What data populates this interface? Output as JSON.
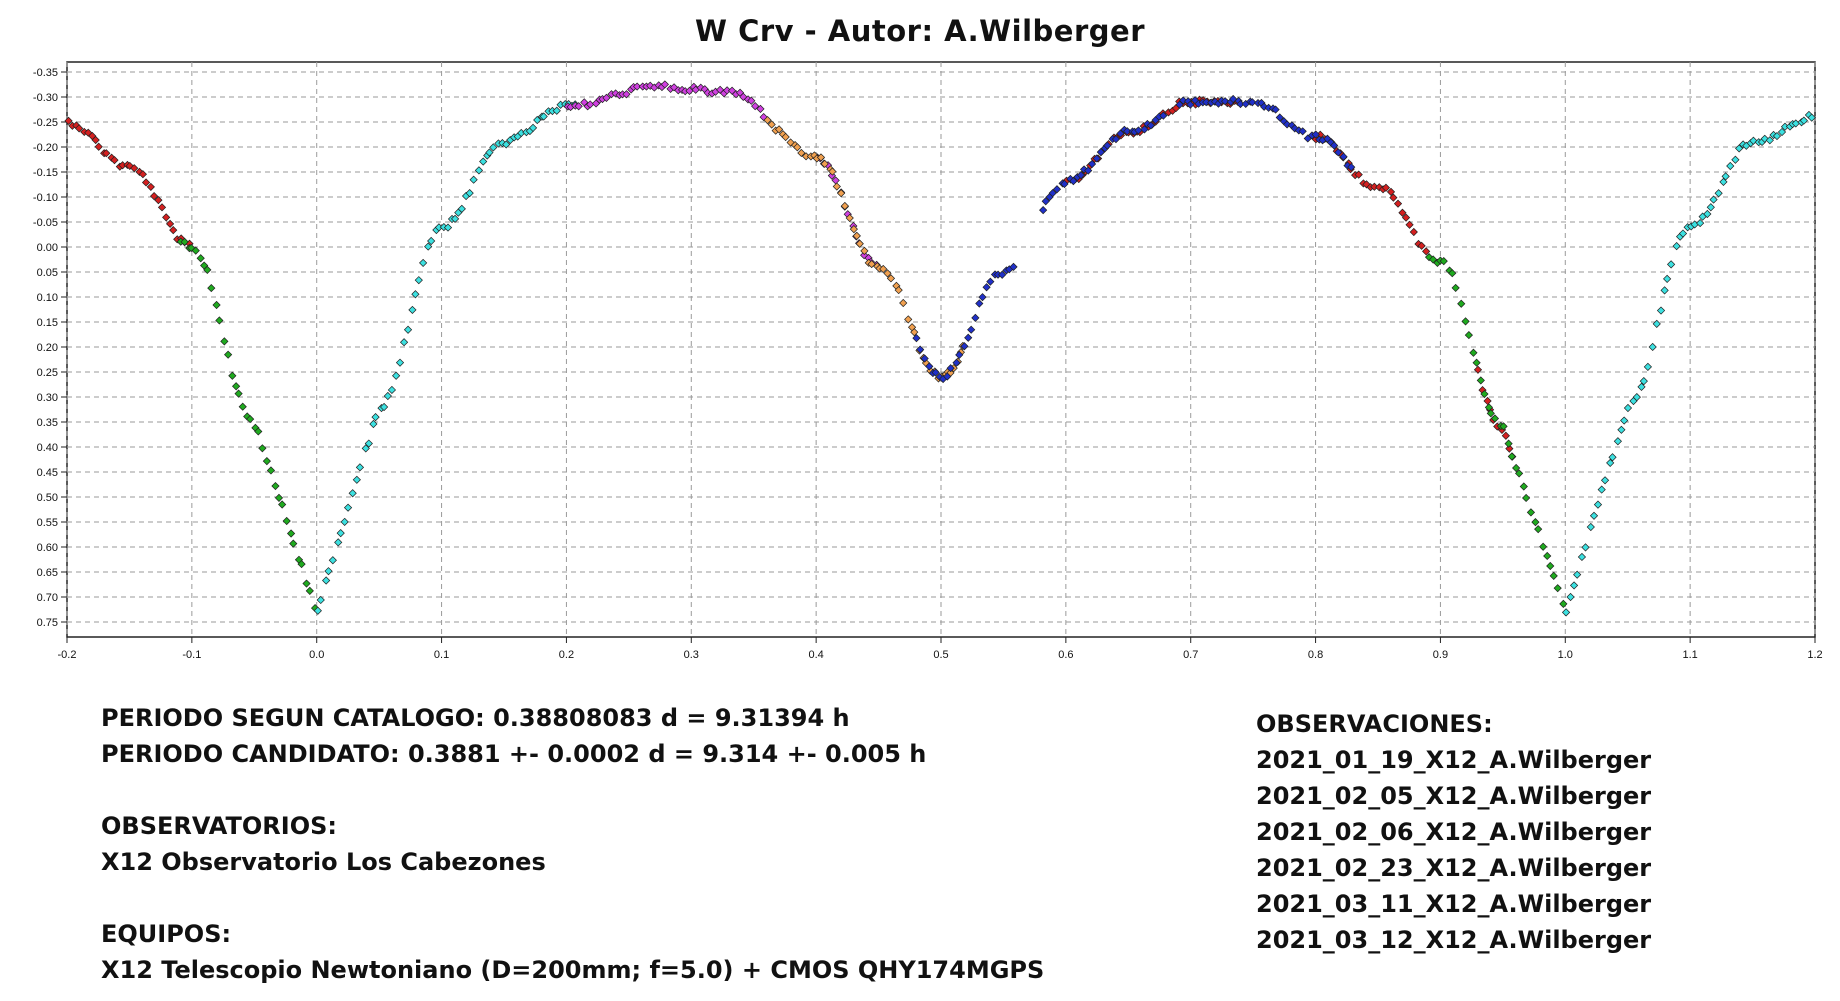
{
  "chart_data": {
    "type": "scatter",
    "title": "W Crv - Autor: A.Wilberger",
    "xlabel": "",
    "ylabel": "",
    "xlim": [
      -0.2,
      1.2
    ],
    "ylim": [
      -0.37,
      0.78
    ],
    "y_inverted": true,
    "grid": true,
    "legend": "none",
    "x_ticks": [
      "-0.2",
      "-0.1",
      "0.0",
      "0.1",
      "0.2",
      "0.3",
      "0.4",
      "0.5",
      "0.6",
      "0.7",
      "0.8",
      "0.9",
      "1.0",
      "1.1",
      "1.2"
    ],
    "y_ticks": [
      "-0.35",
      "-0.30",
      "-0.25",
      "-0.20",
      "-0.15",
      "-0.10",
      "-0.05",
      "0.00",
      "0.05",
      "0.10",
      "0.15",
      "0.20",
      "0.25",
      "0.30",
      "0.35",
      "0.40",
      "0.45",
      "0.50",
      "0.55",
      "0.60",
      "0.65",
      "0.70",
      "0.75"
    ],
    "series": [
      {
        "color": "#d42020",
        "ranges": [
          [
            -0.2,
            -0.1
          ],
          [
            0.6,
            0.74
          ],
          [
            0.8,
            0.89
          ],
          [
            0.93,
            0.96
          ]
        ]
      },
      {
        "color": "#1faa1f",
        "ranges": [
          [
            -0.11,
            0.0
          ],
          [
            0.89,
            1.0
          ]
        ]
      },
      {
        "color": "#3ce0e0",
        "ranges": [
          [
            0.0,
            0.21
          ],
          [
            1.0,
            1.2
          ]
        ]
      },
      {
        "color": "#d040e0",
        "ranges": [
          [
            0.2,
            0.36
          ],
          [
            0.4,
            0.45
          ]
        ]
      },
      {
        "color": "#f0a050",
        "ranges": [
          [
            0.36,
            0.5
          ],
          [
            0.5,
            0.52
          ]
        ]
      },
      {
        "color": "#2030c8",
        "ranges": [
          [
            0.48,
            0.56
          ],
          [
            0.58,
            0.68
          ],
          [
            0.69,
            0.83
          ]
        ]
      }
    ],
    "curve_keypoints": [
      [
        -0.2,
        -0.25
      ],
      [
        -0.15,
        -0.16
      ],
      [
        -0.1,
        0.0
      ],
      [
        -0.05,
        0.35
      ],
      [
        0.0,
        0.73
      ],
      [
        0.05,
        0.32
      ],
      [
        0.1,
        -0.04
      ],
      [
        0.15,
        -0.21
      ],
      [
        0.2,
        -0.28
      ],
      [
        0.27,
        -0.32
      ],
      [
        0.33,
        -0.31
      ],
      [
        0.4,
        -0.18
      ],
      [
        0.45,
        0.04
      ],
      [
        0.5,
        0.26
      ],
      [
        0.55,
        0.05
      ],
      [
        0.6,
        -0.13
      ],
      [
        0.65,
        -0.23
      ],
      [
        0.7,
        -0.29
      ],
      [
        0.75,
        -0.29
      ],
      [
        0.8,
        -0.22
      ],
      [
        0.85,
        -0.12
      ],
      [
        0.9,
        0.03
      ],
      [
        0.95,
        0.36
      ],
      [
        1.0,
        0.73
      ],
      [
        1.05,
        0.32
      ],
      [
        1.1,
        -0.04
      ],
      [
        1.15,
        -0.21
      ],
      [
        1.2,
        -0.26
      ]
    ]
  },
  "info": {
    "periodo_catalogo": "PERIODO SEGUN CATALOGO: 0.38808083 d = 9.31394 h",
    "periodo_candidato": "PERIODO CANDIDATO: 0.3881 +- 0.0002 d = 9.314 +- 0.005 h",
    "observatorios_heading": "OBSERVATORIOS:",
    "observatorio": "X12 Observatorio Los Cabezones",
    "equipos_heading": "EQUIPOS:",
    "equipo": "X12 Telescopio Newtoniano (D=200mm; f=5.0) + CMOS QHY174MGPS",
    "observaciones_heading": "OBSERVACIONES:",
    "observaciones": [
      "2021_01_19_X12_A.Wilberger",
      "2021_02_05_X12_A.Wilberger",
      "2021_02_06_X12_A.Wilberger",
      "2021_02_23_X12_A.Wilberger",
      "2021_03_11_X12_A.Wilberger",
      "2021_03_12_X12_A.Wilberger"
    ]
  }
}
